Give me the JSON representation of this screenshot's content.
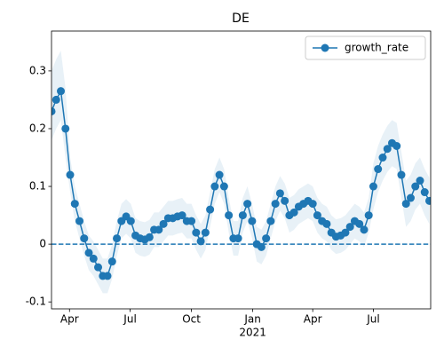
{
  "chart_data": {
    "type": "line",
    "title": "DE",
    "x": [
      "2020-03-05",
      "2020-03-12",
      "2020-03-19",
      "2020-03-26",
      "2020-04-02",
      "2020-04-09",
      "2020-04-16",
      "2020-04-23",
      "2020-04-30",
      "2020-05-07",
      "2020-05-14",
      "2020-05-21",
      "2020-05-28",
      "2020-06-04",
      "2020-06-11",
      "2020-06-18",
      "2020-06-25",
      "2020-07-02",
      "2020-07-09",
      "2020-07-16",
      "2020-07-23",
      "2020-07-30",
      "2020-08-06",
      "2020-08-13",
      "2020-08-20",
      "2020-08-27",
      "2020-09-03",
      "2020-09-10",
      "2020-09-17",
      "2020-09-24",
      "2020-10-01",
      "2020-10-08",
      "2020-10-15",
      "2020-10-22",
      "2020-10-29",
      "2020-11-05",
      "2020-11-12",
      "2020-11-19",
      "2020-11-26",
      "2020-12-03",
      "2020-12-10",
      "2020-12-17",
      "2020-12-24",
      "2020-12-31",
      "2021-01-07",
      "2021-01-14",
      "2021-01-21",
      "2021-01-28",
      "2021-02-04",
      "2021-02-11",
      "2021-02-18",
      "2021-02-25",
      "2021-03-04",
      "2021-03-11",
      "2021-03-18",
      "2021-03-25",
      "2021-04-01",
      "2021-04-08",
      "2021-04-15",
      "2021-04-22",
      "2021-04-29",
      "2021-05-06",
      "2021-05-13",
      "2021-05-20",
      "2021-05-27",
      "2021-06-03",
      "2021-06-10",
      "2021-06-17",
      "2021-06-24",
      "2021-07-01",
      "2021-07-08",
      "2021-07-15",
      "2021-07-22",
      "2021-07-29",
      "2021-08-05",
      "2021-08-12",
      "2021-08-19",
      "2021-08-26",
      "2021-09-02",
      "2021-09-09",
      "2021-09-16",
      "2021-09-23"
    ],
    "series": [
      {
        "name": "growth_rate",
        "color": "#1f77b4",
        "values": [
          0.23,
          0.25,
          0.265,
          0.2,
          0.12,
          0.07,
          0.04,
          0.01,
          -0.015,
          -0.025,
          -0.04,
          -0.055,
          -0.055,
          -0.03,
          0.01,
          0.04,
          0.048,
          0.04,
          0.015,
          0.01,
          0.008,
          0.012,
          0.025,
          0.025,
          0.035,
          0.045,
          0.045,
          0.048,
          0.05,
          0.04,
          0.04,
          0.02,
          0.005,
          0.02,
          0.06,
          0.1,
          0.12,
          0.1,
          0.05,
          0.01,
          0.01,
          0.05,
          0.07,
          0.04,
          0,
          -0.005,
          0.01,
          0.04,
          0.07,
          0.088,
          0.075,
          0.05,
          0.055,
          0.065,
          0.07,
          0.075,
          0.07,
          0.05,
          0.04,
          0.035,
          0.02,
          0.013,
          0.015,
          0.02,
          0.03,
          0.04,
          0.035,
          0.025,
          0.05,
          0.1,
          0.13,
          0.15,
          0.165,
          0.175,
          0.17,
          0.12,
          0.07,
          0.08,
          0.1,
          0.11,
          0.09,
          0.075
        ]
      }
    ],
    "band_upper": [
      0.3,
      0.32,
      0.335,
      0.27,
      0.15,
      0.1,
      0.07,
      0.04,
      0.015,
      0.005,
      -0.01,
      -0.025,
      -0.025,
      0,
      0.04,
      0.07,
      0.078,
      0.07,
      0.045,
      0.04,
      0.038,
      0.042,
      0.055,
      0.055,
      0.065,
      0.075,
      0.075,
      0.078,
      0.08,
      0.07,
      0.07,
      0.05,
      0.035,
      0.05,
      0.09,
      0.13,
      0.15,
      0.13,
      0.08,
      0.04,
      0.04,
      0.08,
      0.1,
      0.07,
      0.03,
      0.025,
      0.04,
      0.07,
      0.1,
      0.118,
      0.105,
      0.08,
      0.085,
      0.095,
      0.1,
      0.105,
      0.1,
      0.08,
      0.07,
      0.065,
      0.05,
      0.043,
      0.045,
      0.05,
      0.06,
      0.07,
      0.065,
      0.055,
      0.08,
      0.14,
      0.17,
      0.19,
      0.205,
      0.215,
      0.21,
      0.16,
      0.11,
      0.12,
      0.14,
      0.15,
      0.13,
      0.115
    ],
    "band_lower": [
      0.18,
      0.2,
      0.215,
      0.15,
      0.09,
      0.04,
      0.01,
      -0.02,
      -0.045,
      -0.055,
      -0.07,
      -0.085,
      -0.085,
      -0.06,
      -0.02,
      0.01,
      0.018,
      0.01,
      -0.015,
      -0.02,
      -0.022,
      -0.018,
      -0.005,
      -0.005,
      0.005,
      0.015,
      0.015,
      0.018,
      0.02,
      0.01,
      0.01,
      -0.01,
      -0.025,
      -0.01,
      0.03,
      0.07,
      0.09,
      0.07,
      0.02,
      -0.02,
      -0.02,
      0.02,
      0.04,
      0.01,
      -0.03,
      -0.035,
      -0.02,
      0.01,
      0.04,
      0.058,
      0.045,
      0.02,
      0.025,
      0.035,
      0.04,
      0.045,
      0.04,
      0.02,
      0.01,
      0.005,
      -0.01,
      -0.017,
      -0.015,
      -0.01,
      0,
      0.01,
      0.005,
      -0.005,
      0.02,
      0.06,
      0.09,
      0.11,
      0.125,
      0.135,
      0.13,
      0.08,
      0.03,
      0.04,
      0.06,
      0.07,
      0.05,
      0.035
    ],
    "xlim": [
      "2020-03-05",
      "2021-09-25"
    ],
    "xticks": [
      {
        "value": "2020-04-01",
        "label": "Apr"
      },
      {
        "value": "2020-07-01",
        "label": "Jul"
      },
      {
        "value": "2020-10-01",
        "label": "Oct"
      },
      {
        "value": "2021-01-01",
        "label": "Jan"
      },
      {
        "value": "2021-04-01",
        "label": "Apr"
      },
      {
        "value": "2021-07-01",
        "label": "Jul"
      }
    ],
    "x_year_label": {
      "value": "2021-01-01",
      "label": "2021"
    },
    "ylim": [
      -0.112,
      0.369
    ],
    "yticks": [
      -0.1,
      0.0,
      0.1,
      0.2,
      0.3
    ],
    "hline": 0,
    "legend": "upper right"
  }
}
